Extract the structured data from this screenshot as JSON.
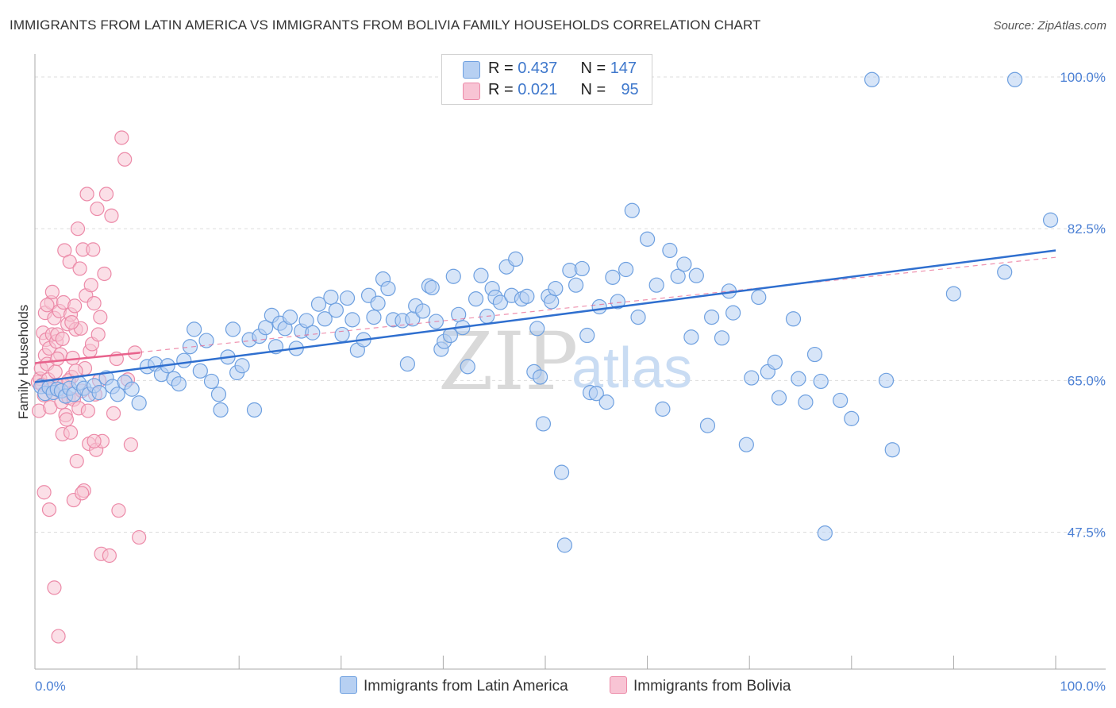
{
  "title": "IMMIGRANTS FROM LATIN AMERICA VS IMMIGRANTS FROM BOLIVIA FAMILY HOUSEHOLDS CORRELATION CHART",
  "source": "Source: ZipAtlas.com",
  "watermark": {
    "zip": "ZIP",
    "atlas": "atlas"
  },
  "colors": {
    "blue_fill": "#b7d0f2",
    "blue_stroke": "#6ea0e0",
    "blue_line": "#2f6fcf",
    "pink_fill": "#f8c4d4",
    "pink_stroke": "#ec8aa8",
    "pink_line": "#e8628c",
    "axis_text": "#4a7fd4",
    "grid": "#dcdcdc"
  },
  "legend": {
    "rows": [
      {
        "r_label": "R = ",
        "r_value": "0.437",
        "n_label": "N = ",
        "n_value": "147"
      },
      {
        "r_label": "R = ",
        "r_value": "0.021",
        "n_label": "N = ",
        "n_value": "95"
      }
    ]
  },
  "bottom_legend": {
    "series1": "Immigrants from Latin America",
    "series2": "Immigrants from Bolivia"
  },
  "chart_data": {
    "type": "scatter",
    "title": "IMMIGRANTS FROM LATIN AMERICA VS IMMIGRANTS FROM BOLIVIA FAMILY HOUSEHOLDS CORRELATION CHART",
    "xlabel": "",
    "ylabel": "Family Households",
    "xlim": [
      0,
      100
    ],
    "ylim": [
      33,
      102
    ],
    "y_ticks": [
      {
        "value": 100.0,
        "label": "100.0%"
      },
      {
        "value": 82.5,
        "label": "82.5%"
      },
      {
        "value": 65.0,
        "label": "65.0%"
      },
      {
        "value": 47.5,
        "label": "47.5%"
      }
    ],
    "x_tick_labels": {
      "left": "0.0%",
      "right": "100.0%"
    },
    "grid": true,
    "legend_position": "top-center",
    "series": [
      {
        "name": "Immigrants from Latin America",
        "R": 0.437,
        "N": 147,
        "trend": {
          "x": [
            0,
            100
          ],
          "y": [
            64.8,
            80.0
          ]
        },
        "points": [
          [
            0.6,
            64.3
          ],
          [
            1.0,
            63.5
          ],
          [
            1.4,
            64.2
          ],
          [
            1.8,
            63.6
          ],
          [
            2.2,
            64.0
          ],
          [
            2.6,
            63.8
          ],
          [
            3.0,
            63.2
          ],
          [
            3.4,
            64.1
          ],
          [
            3.8,
            63.4
          ],
          [
            4.3,
            64.7
          ],
          [
            4.8,
            64.1
          ],
          [
            5.3,
            63.4
          ],
          [
            5.8,
            64.4
          ],
          [
            6.3,
            63.6
          ],
          [
            7.0,
            65.3
          ],
          [
            7.6,
            64.3
          ],
          [
            8.1,
            63.4
          ],
          [
            8.8,
            64.8
          ],
          [
            9.5,
            64.0
          ],
          [
            10.2,
            62.4
          ],
          [
            11.0,
            66.6
          ],
          [
            11.8,
            66.9
          ],
          [
            12.4,
            65.7
          ],
          [
            13.0,
            66.7
          ],
          [
            13.6,
            65.2
          ],
          [
            14.1,
            64.6
          ],
          [
            14.6,
            67.3
          ],
          [
            15.2,
            68.9
          ],
          [
            15.6,
            70.9
          ],
          [
            16.2,
            66.1
          ],
          [
            16.8,
            69.6
          ],
          [
            17.3,
            64.9
          ],
          [
            18.0,
            63.4
          ],
          [
            18.2,
            61.6
          ],
          [
            18.9,
            67.7
          ],
          [
            19.4,
            70.9
          ],
          [
            19.8,
            65.9
          ],
          [
            20.3,
            66.7
          ],
          [
            21.0,
            69.7
          ],
          [
            21.5,
            61.6
          ],
          [
            22.0,
            70.1
          ],
          [
            22.6,
            71.1
          ],
          [
            23.2,
            72.5
          ],
          [
            23.6,
            68.9
          ],
          [
            24.0,
            71.6
          ],
          [
            24.5,
            71.0
          ],
          [
            25.0,
            72.3
          ],
          [
            25.6,
            68.7
          ],
          [
            26.1,
            70.7
          ],
          [
            26.6,
            71.9
          ],
          [
            27.2,
            70.5
          ],
          [
            27.8,
            73.8
          ],
          [
            28.4,
            72.1
          ],
          [
            29.0,
            74.6
          ],
          [
            29.5,
            73.1
          ],
          [
            30.1,
            70.3
          ],
          [
            30.6,
            74.5
          ],
          [
            31.1,
            72.0
          ],
          [
            31.6,
            68.5
          ],
          [
            32.2,
            69.7
          ],
          [
            32.7,
            74.8
          ],
          [
            33.2,
            72.3
          ],
          [
            33.6,
            73.9
          ],
          [
            34.1,
            76.7
          ],
          [
            34.6,
            75.6
          ],
          [
            35.1,
            72.0
          ],
          [
            36.0,
            71.9
          ],
          [
            36.5,
            66.9
          ],
          [
            37.0,
            72.1
          ],
          [
            37.3,
            73.6
          ],
          [
            38.0,
            73.0
          ],
          [
            38.6,
            75.9
          ],
          [
            38.9,
            75.7
          ],
          [
            39.3,
            71.8
          ],
          [
            39.8,
            68.6
          ],
          [
            40.1,
            69.5
          ],
          [
            40.7,
            70.2
          ],
          [
            41.0,
            77.0
          ],
          [
            41.5,
            72.6
          ],
          [
            41.9,
            71.1
          ],
          [
            42.4,
            66.6
          ],
          [
            43.2,
            74.4
          ],
          [
            43.7,
            77.1
          ],
          [
            44.3,
            72.4
          ],
          [
            44.8,
            75.6
          ],
          [
            45.1,
            74.6
          ],
          [
            45.6,
            74.0
          ],
          [
            46.2,
            78.1
          ],
          [
            46.7,
            74.8
          ],
          [
            47.1,
            79.0
          ],
          [
            47.7,
            74.4
          ],
          [
            48.2,
            74.7
          ],
          [
            48.9,
            66.0
          ],
          [
            49.2,
            71.0
          ],
          [
            49.5,
            65.4
          ],
          [
            49.8,
            60.0
          ],
          [
            50.3,
            74.7
          ],
          [
            50.6,
            74.1
          ],
          [
            51.0,
            75.6
          ],
          [
            51.6,
            54.4
          ],
          [
            51.9,
            46.0
          ],
          [
            52.4,
            77.7
          ],
          [
            53.0,
            76.0
          ],
          [
            53.6,
            77.9
          ],
          [
            54.1,
            70.2
          ],
          [
            54.4,
            63.6
          ],
          [
            55.0,
            63.5
          ],
          [
            55.3,
            73.5
          ],
          [
            56.0,
            62.5
          ],
          [
            56.6,
            76.9
          ],
          [
            57.1,
            74.1
          ],
          [
            57.9,
            77.8
          ],
          [
            58.5,
            84.6
          ],
          [
            59.1,
            72.3
          ],
          [
            60.0,
            81.3
          ],
          [
            60.9,
            76.0
          ],
          [
            61.5,
            61.7
          ],
          [
            62.2,
            80.0
          ],
          [
            63.0,
            77.0
          ],
          [
            63.6,
            78.4
          ],
          [
            64.3,
            70.0
          ],
          [
            64.8,
            77.1
          ],
          [
            65.9,
            59.8
          ],
          [
            66.3,
            72.3
          ],
          [
            67.3,
            69.9
          ],
          [
            68.0,
            75.3
          ],
          [
            68.4,
            72.8
          ],
          [
            69.7,
            57.6
          ],
          [
            70.2,
            65.3
          ],
          [
            70.9,
            74.6
          ],
          [
            71.8,
            66.0
          ],
          [
            72.5,
            67.1
          ],
          [
            72.9,
            63.0
          ],
          [
            74.3,
            72.1
          ],
          [
            74.8,
            65.2
          ],
          [
            75.5,
            62.5
          ],
          [
            76.4,
            68.0
          ],
          [
            77.0,
            64.9
          ],
          [
            77.4,
            47.4
          ],
          [
            78.9,
            62.7
          ],
          [
            80.0,
            60.6
          ],
          [
            82.0,
            99.7
          ],
          [
            83.4,
            65.0
          ],
          [
            84.0,
            57.0
          ],
          [
            90.0,
            75.0
          ],
          [
            95.0,
            77.5
          ],
          [
            96.0,
            99.7
          ],
          [
            99.5,
            83.5
          ]
        ]
      },
      {
        "name": "Immigrants from Bolivia",
        "R": 0.021,
        "N": 95,
        "trend": {
          "x": [
            0,
            10.3
          ],
          "y": [
            67.0,
            68.2
          ]
        },
        "trend_extended": {
          "x": [
            0,
            100
          ],
          "y": [
            67.0,
            79.2
          ]
        },
        "points": [
          [
            0.3,
            64.8
          ],
          [
            0.4,
            61.5
          ],
          [
            0.5,
            65.2
          ],
          [
            0.6,
            66.4
          ],
          [
            0.7,
            64.5
          ],
          [
            0.8,
            70.5
          ],
          [
            0.9,
            63.3
          ],
          [
            1.0,
            67.9
          ],
          [
            1.0,
            72.8
          ],
          [
            1.1,
            69.7
          ],
          [
            1.2,
            66.9
          ],
          [
            1.3,
            65.1
          ],
          [
            1.4,
            68.7
          ],
          [
            1.5,
            61.9
          ],
          [
            1.6,
            64.0
          ],
          [
            1.6,
            74.0
          ],
          [
            1.7,
            70.3
          ],
          [
            1.8,
            63.6
          ],
          [
            1.9,
            72.2
          ],
          [
            2.0,
            66.0
          ],
          [
            2.1,
            69.5
          ],
          [
            2.2,
            70.3
          ],
          [
            2.3,
            64.4
          ],
          [
            2.4,
            73.0
          ],
          [
            2.5,
            68.0
          ],
          [
            2.6,
            62.5
          ],
          [
            2.7,
            58.8
          ],
          [
            2.8,
            74.0
          ],
          [
            2.9,
            80.0
          ],
          [
            3.0,
            61.0
          ],
          [
            3.1,
            60.5
          ],
          [
            3.2,
            71.5
          ],
          [
            3.3,
            63.0
          ],
          [
            3.4,
            78.7
          ],
          [
            3.5,
            72.6
          ],
          [
            3.6,
            65.4
          ],
          [
            3.7,
            67.6
          ],
          [
            3.8,
            62.8
          ],
          [
            3.9,
            73.6
          ],
          [
            4.0,
            70.9
          ],
          [
            4.1,
            55.7
          ],
          [
            4.2,
            82.5
          ],
          [
            4.3,
            61.8
          ],
          [
            4.4,
            77.9
          ],
          [
            4.5,
            71.0
          ],
          [
            4.6,
            63.8
          ],
          [
            4.7,
            80.1
          ],
          [
            4.8,
            52.3
          ],
          [
            4.9,
            66.4
          ],
          [
            5.0,
            74.8
          ],
          [
            5.1,
            86.5
          ],
          [
            5.2,
            61.5
          ],
          [
            5.3,
            57.7
          ],
          [
            5.4,
            68.4
          ],
          [
            5.5,
            76.0
          ],
          [
            5.6,
            69.2
          ],
          [
            5.7,
            80.1
          ],
          [
            5.8,
            73.9
          ],
          [
            5.9,
            63.4
          ],
          [
            6.0,
            57.0
          ],
          [
            6.1,
            84.8
          ],
          [
            6.2,
            70.3
          ],
          [
            6.3,
            65.0
          ],
          [
            6.4,
            72.3
          ],
          [
            6.5,
            45.0
          ],
          [
            6.6,
            58.0
          ],
          [
            6.8,
            77.3
          ],
          [
            7.0,
            86.5
          ],
          [
            7.3,
            44.8
          ],
          [
            7.5,
            84.0
          ],
          [
            7.7,
            61.2
          ],
          [
            8.0,
            67.5
          ],
          [
            8.2,
            50.0
          ],
          [
            8.5,
            93.0
          ],
          [
            8.8,
            90.5
          ],
          [
            9.1,
            65.1
          ],
          [
            9.4,
            57.6
          ],
          [
            9.8,
            68.2
          ],
          [
            10.2,
            46.9
          ],
          [
            0.9,
            52.1
          ],
          [
            1.4,
            50.1
          ],
          [
            1.9,
            41.1
          ],
          [
            2.3,
            35.5
          ],
          [
            2.8,
            64.5
          ],
          [
            3.5,
            59.0
          ],
          [
            3.8,
            51.2
          ],
          [
            4.6,
            52.0
          ],
          [
            1.2,
            73.7
          ],
          [
            1.7,
            75.2
          ],
          [
            2.2,
            67.5
          ],
          [
            2.7,
            69.8
          ],
          [
            3.3,
            65.0
          ],
          [
            3.6,
            71.7
          ],
          [
            4.0,
            66.1
          ],
          [
            5.8,
            58.0
          ]
        ]
      }
    ]
  }
}
